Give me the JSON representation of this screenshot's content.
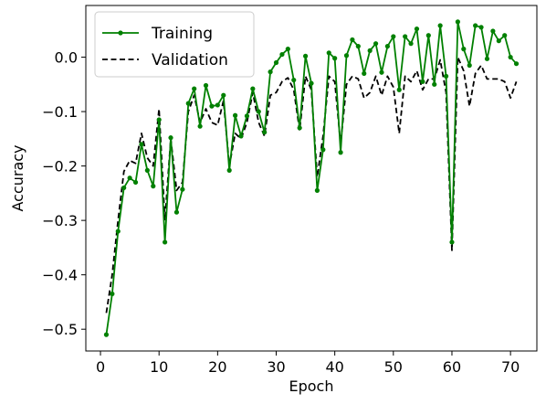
{
  "chart_data": {
    "type": "line",
    "xlabel": "Epoch",
    "ylabel": "Accuracy",
    "xlim": [
      -2.5,
      74.5
    ],
    "ylim": [
      -0.54,
      0.095
    ],
    "xticks": [
      0,
      10,
      20,
      30,
      40,
      50,
      60,
      70
    ],
    "yticks": [
      -0.5,
      -0.4,
      -0.3,
      -0.2,
      -0.1,
      0.0
    ],
    "ytick_labels": [
      "−0.5",
      "−0.4",
      "−0.3",
      "−0.2",
      "−0.1",
      "0.0"
    ],
    "xtick_labels": [
      "0",
      "10",
      "20",
      "30",
      "40",
      "50",
      "60",
      "70"
    ],
    "grid": false,
    "legend_position": "upper-left",
    "x": [
      1,
      2,
      3,
      4,
      5,
      6,
      7,
      8,
      9,
      10,
      11,
      12,
      13,
      14,
      15,
      16,
      17,
      18,
      19,
      20,
      21,
      22,
      23,
      24,
      25,
      26,
      27,
      28,
      29,
      30,
      31,
      32,
      33,
      34,
      35,
      36,
      37,
      38,
      39,
      40,
      41,
      42,
      43,
      44,
      45,
      46,
      47,
      48,
      49,
      50,
      51,
      52,
      53,
      54,
      55,
      56,
      57,
      58,
      59,
      60,
      61,
      62,
      63,
      64,
      65,
      66,
      67,
      68,
      69,
      70,
      71
    ],
    "series": [
      {
        "name": "Training",
        "color": "#008000",
        "style": "solid-with-markers",
        "values": [
          -0.51,
          -0.435,
          -0.32,
          -0.24,
          -0.222,
          -0.23,
          -0.16,
          -0.208,
          -0.237,
          -0.115,
          -0.34,
          -0.148,
          -0.285,
          -0.243,
          -0.085,
          -0.058,
          -0.127,
          -0.052,
          -0.09,
          -0.088,
          -0.07,
          -0.208,
          -0.107,
          -0.145,
          -0.108,
          -0.058,
          -0.1,
          -0.138,
          -0.027,
          -0.01,
          0.005,
          0.015,
          -0.042,
          -0.13,
          0.002,
          -0.048,
          -0.245,
          -0.17,
          0.008,
          -0.002,
          -0.175,
          0.003,
          0.032,
          0.02,
          -0.03,
          0.012,
          0.025,
          -0.028,
          0.02,
          0.038,
          -0.06,
          0.038,
          0.025,
          0.052,
          -0.045,
          0.04,
          -0.05,
          0.058,
          -0.035,
          -0.34,
          0.065,
          0.015,
          -0.015,
          0.058,
          0.055,
          -0.003,
          0.048,
          0.03,
          0.04,
          0.0,
          -0.012
        ]
      },
      {
        "name": "Validation",
        "color": "#000000",
        "style": "dashed",
        "values": [
          -0.47,
          -0.4,
          -0.3,
          -0.21,
          -0.19,
          -0.195,
          -0.14,
          -0.185,
          -0.2,
          -0.095,
          -0.3,
          -0.15,
          -0.245,
          -0.23,
          -0.1,
          -0.07,
          -0.12,
          -0.095,
          -0.12,
          -0.125,
          -0.08,
          -0.2,
          -0.14,
          -0.15,
          -0.12,
          -0.065,
          -0.12,
          -0.145,
          -0.07,
          -0.065,
          -0.045,
          -0.038,
          -0.06,
          -0.135,
          -0.035,
          -0.06,
          -0.22,
          -0.145,
          -0.035,
          -0.045,
          -0.16,
          -0.05,
          -0.035,
          -0.04,
          -0.075,
          -0.065,
          -0.035,
          -0.07,
          -0.035,
          -0.055,
          -0.14,
          -0.035,
          -0.045,
          -0.025,
          -0.06,
          -0.04,
          -0.04,
          -0.005,
          -0.065,
          -0.355,
          0.0,
          -0.025,
          -0.09,
          -0.03,
          -0.015,
          -0.04,
          -0.04,
          -0.04,
          -0.045,
          -0.075,
          -0.045
        ]
      }
    ]
  }
}
